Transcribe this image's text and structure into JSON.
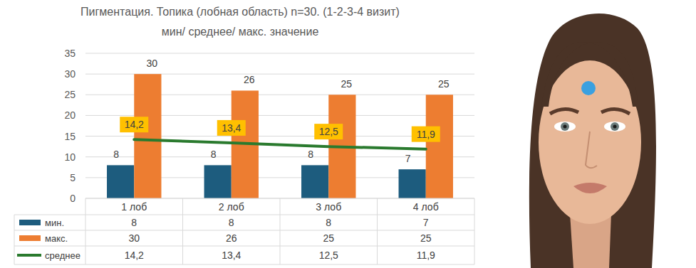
{
  "chart_data": {
    "type": "bar",
    "title": "Пигментация. Топика (лобная область) n=30. (1-2-3-4 визит)",
    "subtitle": "мин/ среднее/ макс. значение",
    "categories": [
      "1 лоб",
      "2 лоб",
      "3 лоб",
      "4 лоб"
    ],
    "series": [
      {
        "name": "мин.",
        "type": "bar",
        "color": "#1d5c7e",
        "values": [
          8,
          8,
          8,
          7
        ]
      },
      {
        "name": "макс.",
        "type": "bar",
        "color": "#ed7d31",
        "values": [
          30,
          26,
          25,
          25
        ]
      },
      {
        "name": "среднее",
        "type": "line",
        "color": "#2a7a2e",
        "values": [
          14.2,
          13.4,
          12.5,
          11.9
        ],
        "value_labels": [
          "14,2",
          "13,4",
          "12,5",
          "11,9"
        ]
      }
    ],
    "ylim": [
      0,
      35
    ],
    "yticks": [
      0,
      5,
      10,
      15,
      20,
      25,
      30,
      35
    ],
    "grid": true,
    "data_labels": true
  }
}
